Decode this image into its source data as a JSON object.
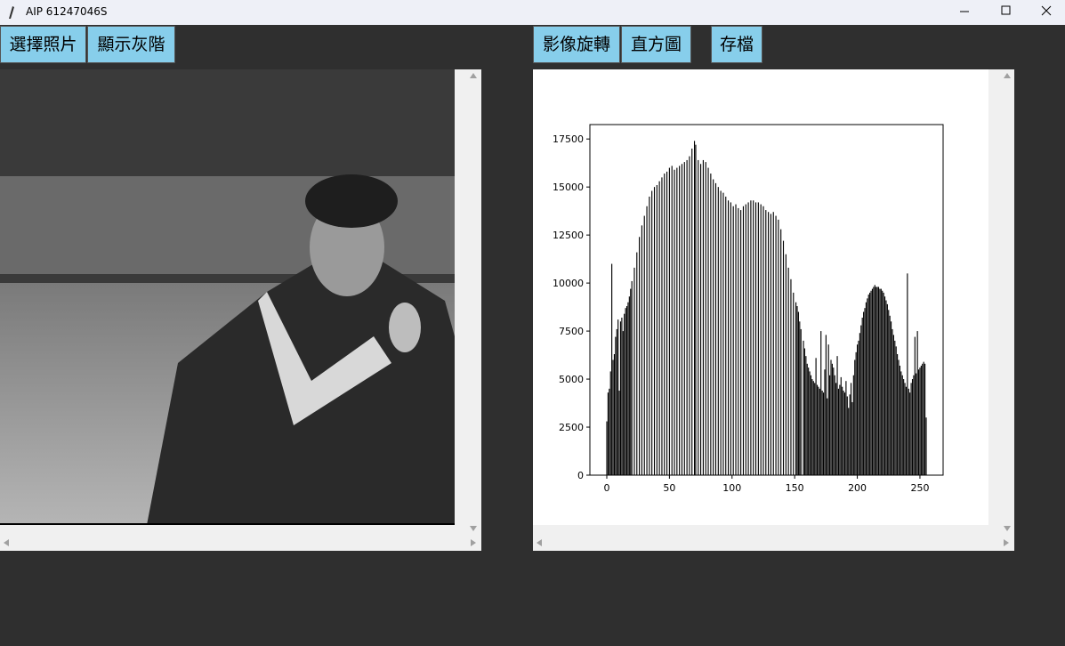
{
  "window": {
    "title": "AIP 61247046S"
  },
  "left_buttons": [
    "選擇照片",
    "顯示灰階"
  ],
  "right_buttons": [
    "影像旋轉",
    "直方圖",
    "存檔"
  ],
  "histogram": {
    "type": "bar",
    "color": "#000000",
    "xlim": [
      -13.5,
      268.5
    ],
    "ylim": [
      0,
      18250
    ],
    "xticks": [
      0,
      50,
      100,
      150,
      200,
      250
    ],
    "yticks": [
      0,
      2500,
      5000,
      7500,
      10000,
      12500,
      15000,
      17500
    ],
    "x": [
      0,
      1,
      2,
      3,
      4,
      5,
      6,
      7,
      8,
      9,
      10,
      11,
      12,
      13,
      14,
      15,
      16,
      17,
      18,
      19,
      20,
      21,
      22,
      23,
      24,
      25,
      26,
      27,
      28,
      29,
      30,
      31,
      32,
      33,
      34,
      35,
      36,
      37,
      38,
      39,
      40,
      41,
      42,
      43,
      44,
      45,
      46,
      47,
      48,
      49,
      50,
      51,
      52,
      53,
      54,
      55,
      56,
      57,
      58,
      59,
      60,
      61,
      62,
      63,
      64,
      65,
      66,
      67,
      68,
      69,
      70,
      71,
      72,
      73,
      74,
      75,
      76,
      77,
      78,
      79,
      80,
      81,
      82,
      83,
      84,
      85,
      86,
      87,
      88,
      89,
      90,
      91,
      92,
      93,
      94,
      95,
      96,
      97,
      98,
      99,
      100,
      101,
      102,
      103,
      104,
      105,
      106,
      107,
      108,
      109,
      110,
      111,
      112,
      113,
      114,
      115,
      116,
      117,
      118,
      119,
      120,
      121,
      122,
      123,
      124,
      125,
      126,
      127,
      128,
      129,
      130,
      131,
      132,
      133,
      134,
      135,
      136,
      137,
      138,
      139,
      140,
      141,
      142,
      143,
      144,
      145,
      146,
      147,
      148,
      149,
      150,
      151,
      152,
      153,
      154,
      155,
      156,
      157,
      158,
      159,
      160,
      161,
      162,
      163,
      164,
      165,
      166,
      167,
      168,
      169,
      170,
      171,
      172,
      173,
      174,
      175,
      176,
      177,
      178,
      179,
      180,
      181,
      182,
      183,
      184,
      185,
      186,
      187,
      188,
      189,
      190,
      191,
      192,
      193,
      194,
      195,
      196,
      197,
      198,
      199,
      200,
      201,
      202,
      203,
      204,
      205,
      206,
      207,
      208,
      209,
      210,
      211,
      212,
      213,
      214,
      215,
      216,
      217,
      218,
      219,
      220,
      221,
      222,
      223,
      224,
      225,
      226,
      227,
      228,
      229,
      230,
      231,
      232,
      233,
      234,
      235,
      236,
      237,
      238,
      239,
      240,
      241,
      242,
      243,
      244,
      245,
      246,
      247,
      248,
      249,
      250,
      251,
      252,
      253,
      254,
      255
    ],
    "values": [
      2800,
      4300,
      4500,
      5400,
      11000,
      6000,
      6300,
      7200,
      7600,
      8100,
      4400,
      8000,
      8200,
      7500,
      8400,
      8700,
      8800,
      9000,
      9300,
      9700,
      10100,
      0,
      10800,
      0,
      11600,
      0,
      12400,
      0,
      13000,
      0,
      13500,
      0,
      14000,
      0,
      14500,
      0,
      14800,
      0,
      15000,
      0,
      15100,
      0,
      15300,
      0,
      15500,
      0,
      15700,
      0,
      15800,
      0,
      16000,
      0,
      16100,
      0,
      15900,
      0,
      16000,
      0,
      16100,
      0,
      16200,
      0,
      16300,
      0,
      16400,
      0,
      16600,
      0,
      17000,
      0,
      17400,
      17200,
      0,
      16400,
      0,
      16200,
      0,
      16400,
      0,
      16300,
      0,
      16000,
      0,
      15700,
      0,
      15400,
      0,
      15200,
      0,
      15000,
      0,
      14800,
      0,
      14700,
      0,
      14500,
      0,
      14300,
      0,
      14200,
      0,
      14000,
      0,
      14100,
      0,
      13900,
      0,
      13800,
      0,
      14000,
      0,
      14100,
      0,
      14200,
      0,
      14300,
      0,
      14300,
      0,
      14200,
      0,
      14200,
      0,
      14100,
      0,
      14000,
      0,
      13800,
      0,
      13700,
      0,
      13600,
      0,
      13700,
      0,
      13500,
      0,
      13300,
      0,
      12800,
      0,
      12200,
      0,
      11500,
      0,
      10800,
      0,
      10200,
      0,
      9500,
      0,
      9000,
      8800,
      8500,
      8000,
      7600,
      0,
      7000,
      6600,
      6200,
      5800,
      5600,
      5400,
      5200,
      5000,
      4900,
      4800,
      6100,
      4700,
      4600,
      4500,
      7500,
      4400,
      4300,
      5500,
      7300,
      4000,
      6800,
      5200,
      6000,
      5800,
      5600,
      5200,
      4800,
      6200,
      4500,
      4700,
      5100,
      4600,
      4400,
      4300,
      4900,
      4100,
      3500,
      4200,
      4800,
      3800,
      5200,
      6000,
      6400,
      6800,
      7000,
      7400,
      7800,
      8200,
      8500,
      8700,
      9000,
      9200,
      9400,
      9500,
      9600,
      9700,
      9800,
      9900,
      9800,
      9800,
      9800,
      9700,
      9700,
      9600,
      9500,
      9300,
      9100,
      8900,
      8600,
      8300,
      8000,
      7600,
      7300,
      7000,
      6700,
      6300,
      6000,
      5700,
      5400,
      5200,
      5000,
      4800,
      4600,
      10500,
      4500,
      4300,
      4800,
      5000,
      5200,
      7200,
      5300,
      7500,
      5500,
      5600,
      5700,
      5800,
      5900,
      5800,
      3000
    ]
  }
}
